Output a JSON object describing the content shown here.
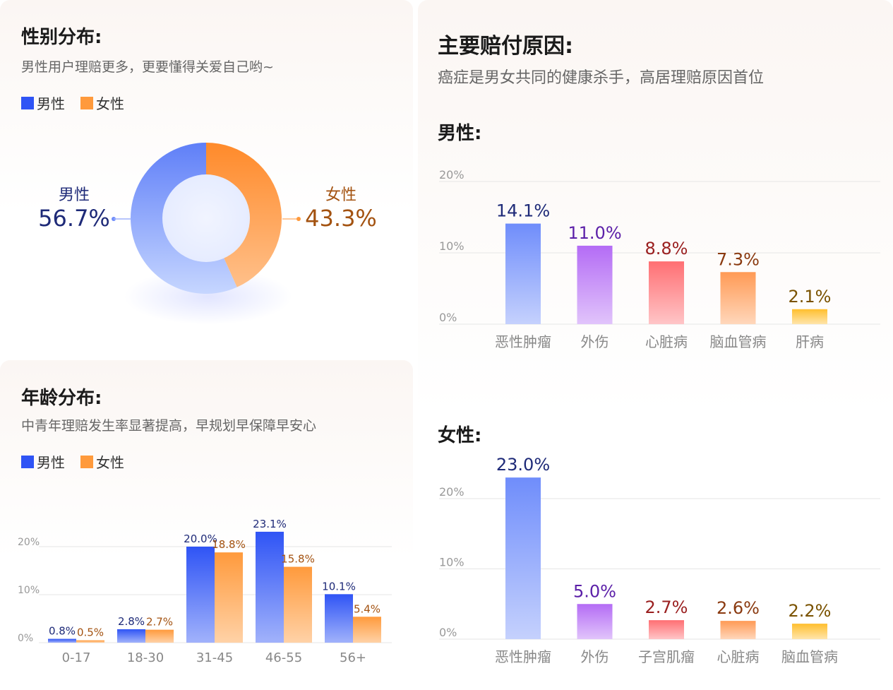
{
  "colors": {
    "male": "#2f54f5",
    "female": "#ff9a3c",
    "male_text": "#1e2a78",
    "female_text": "#a35210",
    "grid": "#e6e6e6",
    "tick": "#999999"
  },
  "gender": {
    "title": "性别分布:",
    "subtitle": "男性用户理赔更多，更要懂得关爱自己哟~",
    "legend_male": "男性",
    "legend_female": "女性",
    "male_label": "男性",
    "male_pct": "56.7%",
    "female_label": "女性",
    "female_pct": "43.3%"
  },
  "age": {
    "title": "年龄分布:",
    "subtitle": "中青年理赔发生率显著提高，早规划早保障早安心",
    "legend_male": "男性",
    "legend_female": "女性"
  },
  "claims": {
    "title": "主要赔付原因:",
    "subtitle": "癌症是男女共同的健康杀手，高居理赔原因首位",
    "male_heading": "男性:",
    "female_heading": "女性:"
  },
  "chart_data": [
    {
      "id": "gender-donut",
      "type": "pie",
      "categories": [
        "男性",
        "女性"
      ],
      "values": [
        56.7,
        43.3
      ],
      "colors": [
        "#6f8dfb",
        "#ff9a3c"
      ]
    },
    {
      "id": "age-bar",
      "type": "bar",
      "categories": [
        "0-17",
        "18-30",
        "31-45",
        "46-55",
        "56+"
      ],
      "series": [
        {
          "name": "男性",
          "values": [
            0.8,
            2.8,
            20.0,
            23.1,
            10.1
          ],
          "labels": [
            "0.8%",
            "2.8%",
            "20.0%",
            "23.1%",
            "10.1%"
          ],
          "color": "#2f54f5"
        },
        {
          "name": "女性",
          "values": [
            0.5,
            2.7,
            18.8,
            15.8,
            5.4
          ],
          "labels": [
            "0.5%",
            "2.7%",
            "18.8%",
            "15.8%",
            "5.4%"
          ],
          "color": "#ff9a3c"
        }
      ],
      "yticks": [
        "0%",
        "10%",
        "20%"
      ],
      "ylim": [
        0,
        25
      ]
    },
    {
      "id": "male-causes",
      "type": "bar",
      "categories": [
        "恶性肿瘤",
        "外伤",
        "心脏病",
        "脑血管病",
        "肝病"
      ],
      "values": [
        14.1,
        11.0,
        8.8,
        7.3,
        2.1
      ],
      "labels": [
        "14.1%",
        "11.0%",
        "8.8%",
        "7.3%",
        "2.1%"
      ],
      "colors": [
        "#6f8dfb",
        "#b46cf5",
        "#ff6f73",
        "#ff9a55",
        "#ffbf2e"
      ],
      "label_colors": [
        "#1e2a78",
        "#5b1fa8",
        "#9a1f1f",
        "#8a3a10",
        "#7a5200"
      ],
      "yticks": [
        "0%",
        "10%",
        "20%"
      ],
      "ylim": [
        0,
        20
      ]
    },
    {
      "id": "female-causes",
      "type": "bar",
      "categories": [
        "恶性肿瘤",
        "外伤",
        "子宫肌瘤",
        "心脏病",
        "脑血管病"
      ],
      "values": [
        23.0,
        5.0,
        2.7,
        2.6,
        2.2
      ],
      "labels": [
        "23.0%",
        "5.0%",
        "2.7%",
        "2.6%",
        "2.2%"
      ],
      "colors": [
        "#6f8dfb",
        "#b46cf5",
        "#ff6f73",
        "#ff9a55",
        "#ffbf2e"
      ],
      "label_colors": [
        "#1e2a78",
        "#5b1fa8",
        "#9a1f1f",
        "#8a3a10",
        "#7a5200"
      ],
      "yticks": [
        "0%",
        "10%",
        "20%"
      ],
      "ylim": [
        0,
        20
      ]
    }
  ]
}
